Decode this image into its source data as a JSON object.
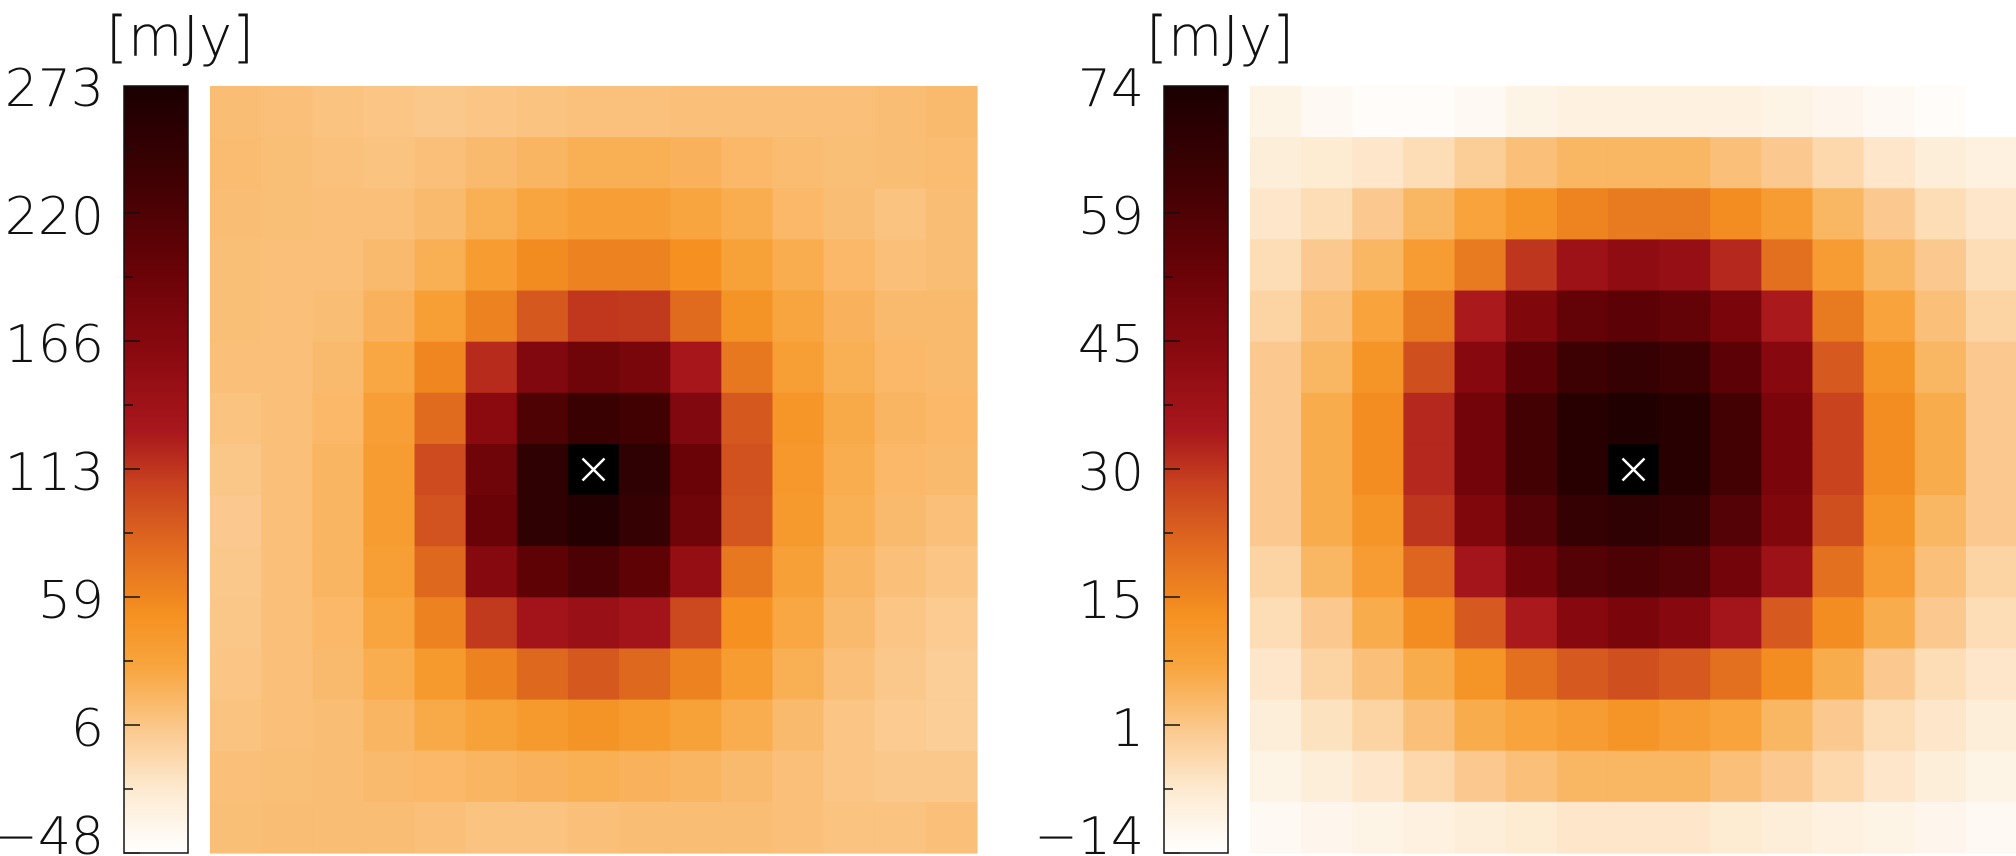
{
  "chart_data": [
    {
      "type": "heatmap",
      "colorbar_unit": "[mJy]",
      "colorbar_ticks": [
        "273",
        "220",
        "166",
        "113",
        "59",
        "6",
        "−48"
      ],
      "vmin": -48,
      "vmax": 273,
      "marker": {
        "symbol": "×",
        "row": 7,
        "col": 7
      },
      "grid_rows": 15,
      "grid_cols": 15,
      "values": [
        [
          12,
          10,
          8,
          6,
          4,
          6,
          8,
          9,
          9,
          10,
          10,
          10,
          10,
          12,
          14
        ],
        [
          13,
          11,
          9,
          8,
          10,
          14,
          18,
          22,
          22,
          20,
          16,
          13,
          11,
          12,
          13
        ],
        [
          12,
          11,
          10,
          10,
          14,
          22,
          30,
          36,
          36,
          30,
          24,
          16,
          12,
          8,
          12
        ],
        [
          11,
          10,
          10,
          14,
          22,
          40,
          55,
          62,
          62,
          52,
          34,
          24,
          16,
          10,
          12
        ],
        [
          11,
          10,
          12,
          20,
          38,
          62,
          92,
          112,
          110,
          80,
          48,
          30,
          20,
          14,
          14
        ],
        [
          10,
          10,
          14,
          28,
          60,
          118,
          170,
          190,
          180,
          130,
          70,
          38,
          22,
          16,
          14
        ],
        [
          8,
          10,
          16,
          36,
          80,
          160,
          220,
          240,
          232,
          170,
          92,
          46,
          26,
          18,
          16
        ],
        [
          5,
          10,
          18,
          40,
          100,
          190,
          250,
          273,
          250,
          195,
          96,
          44,
          24,
          16,
          14
        ],
        [
          3,
          10,
          18,
          40,
          95,
          195,
          250,
          262,
          245,
          190,
          94,
          42,
          22,
          14,
          10
        ],
        [
          4,
          10,
          18,
          38,
          82,
          165,
          205,
          222,
          205,
          150,
          70,
          35,
          18,
          10,
          6
        ],
        [
          5,
          10,
          16,
          30,
          62,
          110,
          135,
          145,
          135,
          102,
          52,
          28,
          14,
          6,
          2
        ],
        [
          6,
          10,
          14,
          24,
          42,
          62,
          82,
          92,
          82,
          62,
          40,
          22,
          10,
          4,
          0
        ],
        [
          8,
          10,
          12,
          18,
          26,
          34,
          42,
          48,
          42,
          34,
          24,
          14,
          6,
          2,
          0
        ],
        [
          10,
          11,
          12,
          14,
          16,
          18,
          20,
          22,
          20,
          18,
          14,
          10,
          6,
          4,
          4
        ],
        [
          11,
          12,
          12,
          12,
          10,
          8,
          8,
          10,
          12,
          12,
          12,
          10,
          8,
          8,
          10
        ]
      ]
    },
    {
      "type": "heatmap",
      "colorbar_unit": "[mJy]",
      "colorbar_ticks": [
        "74",
        "59",
        "45",
        "30",
        "15",
        "1",
        "−14"
      ],
      "vmin": -14,
      "vmax": 74,
      "marker": {
        "symbol": "×",
        "row": 7,
        "col": 7
      },
      "grid_rows": 15,
      "grid_cols": 15,
      "values": [
        [
          -10,
          -12,
          -13,
          -13,
          -12,
          -10,
          -9,
          -9,
          -9,
          -9,
          -10,
          -11,
          -12,
          -13,
          -14
        ],
        [
          -8,
          -7,
          -6,
          -4,
          -1,
          2,
          4,
          4,
          4,
          2,
          0,
          -3,
          -6,
          -8,
          -9
        ],
        [
          -6,
          -4,
          0,
          4,
          8,
          12,
          16,
          18,
          18,
          14,
          10,
          4,
          0,
          -4,
          -6
        ],
        [
          -4,
          0,
          4,
          10,
          18,
          30,
          38,
          42,
          40,
          32,
          20,
          10,
          4,
          0,
          -4
        ],
        [
          -2,
          2,
          8,
          18,
          34,
          46,
          54,
          56,
          54,
          48,
          34,
          18,
          8,
          2,
          -2
        ],
        [
          0,
          4,
          12,
          26,
          44,
          56,
          64,
          66,
          64,
          56,
          44,
          24,
          12,
          4,
          0
        ],
        [
          0,
          6,
          14,
          32,
          50,
          62,
          70,
          72,
          70,
          62,
          48,
          28,
          14,
          6,
          0
        ],
        [
          0,
          6,
          14,
          32,
          50,
          62,
          70,
          74,
          70,
          62,
          48,
          28,
          14,
          6,
          0
        ],
        [
          0,
          6,
          12,
          30,
          46,
          58,
          66,
          68,
          66,
          58,
          46,
          26,
          12,
          4,
          0
        ],
        [
          -2,
          4,
          10,
          22,
          36,
          50,
          58,
          60,
          58,
          50,
          38,
          20,
          10,
          2,
          -2
        ],
        [
          -4,
          0,
          6,
          14,
          24,
          34,
          44,
          48,
          44,
          36,
          24,
          14,
          6,
          0,
          -4
        ],
        [
          -6,
          -2,
          2,
          6,
          12,
          20,
          24,
          26,
          24,
          20,
          14,
          6,
          0,
          -4,
          -6
        ],
        [
          -8,
          -5,
          -2,
          2,
          6,
          8,
          10,
          12,
          10,
          8,
          4,
          0,
          -4,
          -6,
          -8
        ],
        [
          -10,
          -8,
          -6,
          -3,
          0,
          2,
          4,
          4,
          4,
          2,
          0,
          -3,
          -6,
          -8,
          -10
        ],
        [
          -12,
          -11,
          -10,
          -9,
          -8,
          -7,
          -6,
          -6,
          -6,
          -7,
          -8,
          -9,
          -10,
          -11,
          -12
        ]
      ]
    }
  ]
}
